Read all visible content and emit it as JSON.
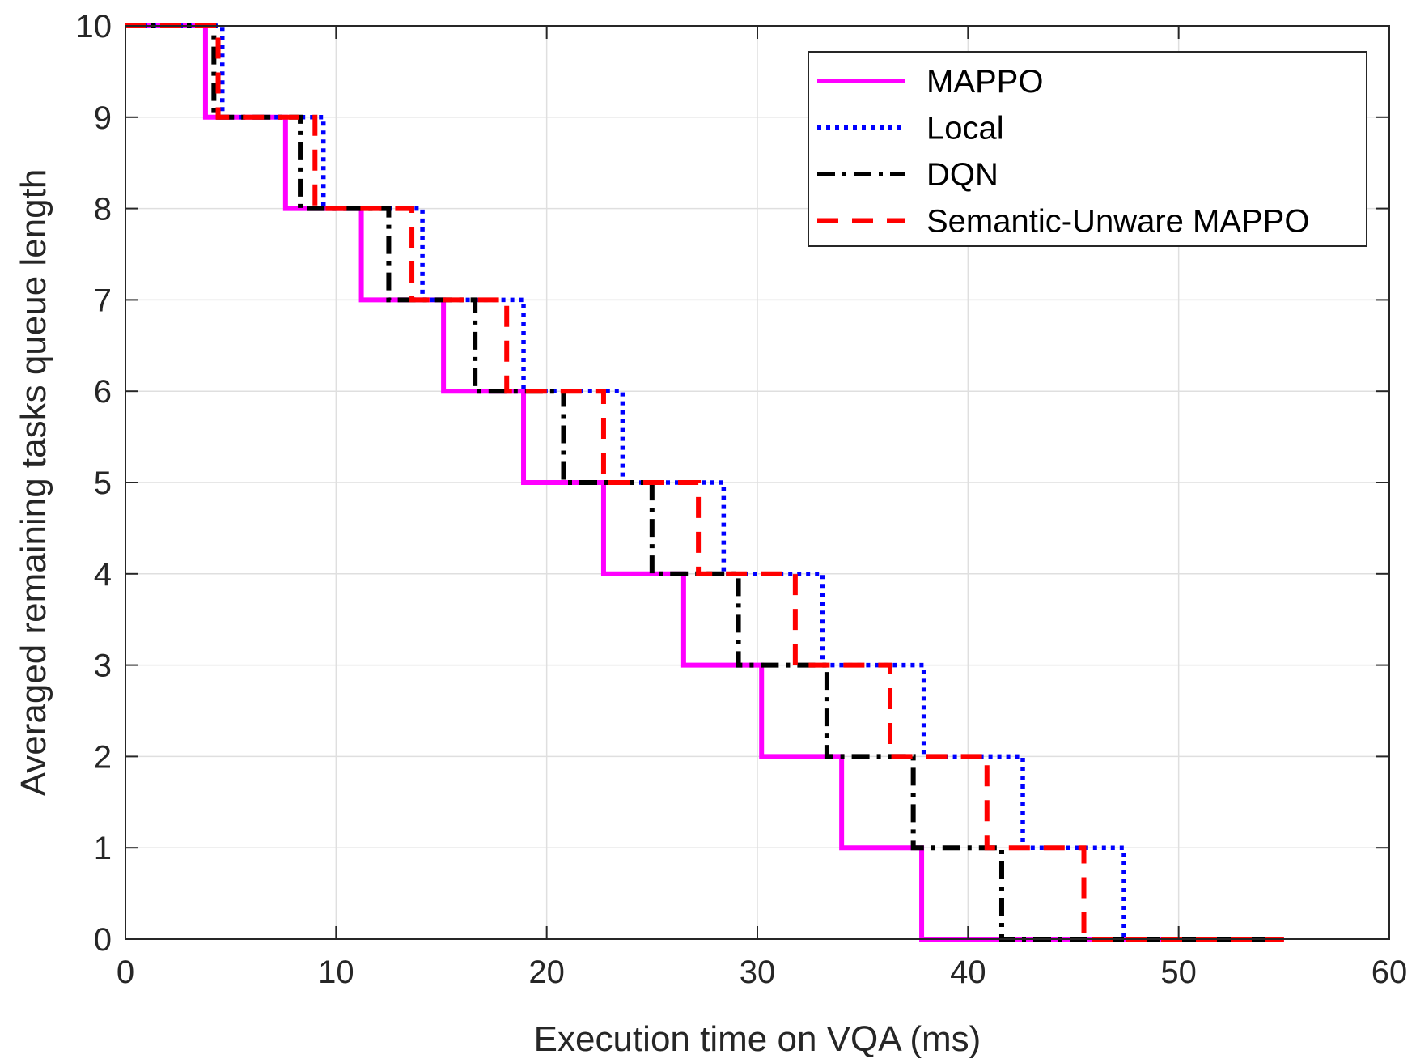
{
  "chart_data": {
    "type": "line",
    "step": true,
    "title": "",
    "xlabel": "Execution time on VQA (ms)",
    "ylabel": "Averaged remaining tasks queue length",
    "xlim": [
      0,
      60
    ],
    "ylim": [
      0,
      10
    ],
    "xticks": [
      0,
      10,
      20,
      30,
      40,
      50,
      60
    ],
    "yticks": [
      0,
      1,
      2,
      3,
      4,
      5,
      6,
      7,
      8,
      9,
      10
    ],
    "grid": true,
    "legend_position": "top-right",
    "x_end": 55,
    "series": [
      {
        "name": "MAPPO",
        "color": "#ff00ff",
        "style": "solid",
        "drop_times": [
          3.8,
          7.6,
          11.2,
          15.1,
          18.9,
          22.7,
          26.5,
          30.2,
          34.0,
          37.8
        ]
      },
      {
        "name": "Local",
        "color": "#0000ff",
        "style": "dotted",
        "drop_times": [
          4.6,
          9.4,
          14.1,
          18.9,
          23.6,
          28.4,
          33.1,
          37.9,
          42.6,
          47.4
        ]
      },
      {
        "name": "DQN",
        "color": "#000000",
        "style": "dashdot",
        "drop_times": [
          4.2,
          8.3,
          12.5,
          16.6,
          20.8,
          25.0,
          29.1,
          33.3,
          37.4,
          41.6
        ]
      },
      {
        "name": "Semantic-Unware MAPPO",
        "color": "#ff0000",
        "style": "dashed",
        "drop_times": [
          4.4,
          9.0,
          13.6,
          18.1,
          22.7,
          27.2,
          31.8,
          36.3,
          40.9,
          45.5
        ]
      }
    ]
  }
}
